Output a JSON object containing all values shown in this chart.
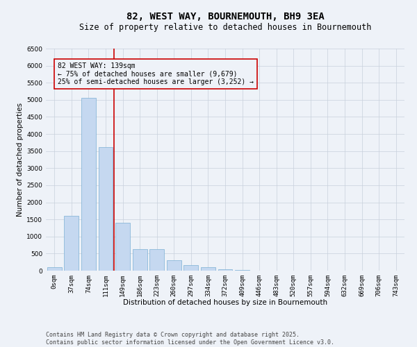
{
  "title": "82, WEST WAY, BOURNEMOUTH, BH9 3EA",
  "subtitle": "Size of property relative to detached houses in Bournemouth",
  "xlabel": "Distribution of detached houses by size in Bournemouth",
  "ylabel": "Number of detached properties",
  "categories": [
    "0sqm",
    "37sqm",
    "74sqm",
    "111sqm",
    "149sqm",
    "186sqm",
    "223sqm",
    "260sqm",
    "297sqm",
    "334sqm",
    "372sqm",
    "409sqm",
    "446sqm",
    "483sqm",
    "520sqm",
    "557sqm",
    "594sqm",
    "632sqm",
    "669sqm",
    "706sqm",
    "743sqm"
  ],
  "bar_values": [
    100,
    1600,
    5050,
    3620,
    1400,
    620,
    620,
    310,
    160,
    110,
    50,
    20,
    10,
    0,
    0,
    0,
    0,
    0,
    0,
    0,
    0
  ],
  "bar_color": "#c5d8f0",
  "bar_edge_color": "#7bafd4",
  "vline_idx": 3.5,
  "vline_color": "#cc0000",
  "annotation_text_line1": "82 WEST WAY: 139sqm",
  "annotation_text_line2": "← 75% of detached houses are smaller (9,679)",
  "annotation_text_line3": "25% of semi-detached houses are larger (3,252) →",
  "annotation_box_color": "#cc0000",
  "ylim": [
    0,
    6500
  ],
  "yticks": [
    0,
    500,
    1000,
    1500,
    2000,
    2500,
    3000,
    3500,
    4000,
    4500,
    5000,
    5500,
    6000,
    6500
  ],
  "footer_line1": "Contains HM Land Registry data © Crown copyright and database right 2025.",
  "footer_line2": "Contains public sector information licensed under the Open Government Licence v3.0.",
  "bg_color": "#eef2f8",
  "grid_color": "#c8d0dc",
  "title_fontsize": 10,
  "subtitle_fontsize": 8.5,
  "axis_label_fontsize": 7.5,
  "tick_fontsize": 6.5,
  "annotation_fontsize": 7,
  "footer_fontsize": 6
}
